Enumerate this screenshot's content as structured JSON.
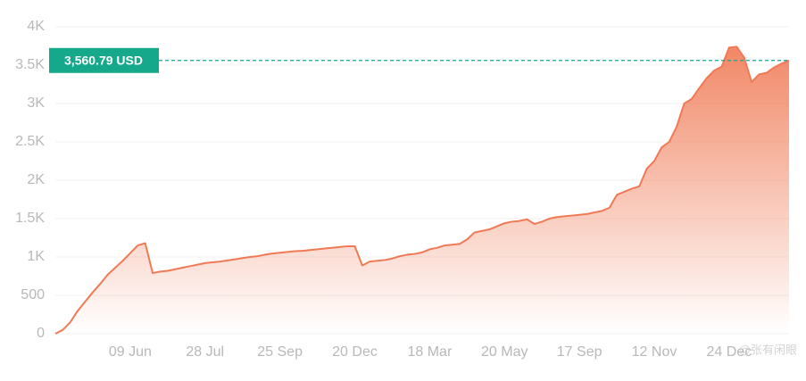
{
  "chart_data": {
    "type": "area",
    "categories": [
      null,
      null,
      null,
      null,
      null,
      null,
      null,
      null,
      null,
      null,
      "09 Jun",
      null,
      null,
      null,
      null,
      null,
      null,
      null,
      null,
      null,
      "28 Jul",
      null,
      null,
      null,
      null,
      null,
      null,
      null,
      null,
      null,
      "25 Sep",
      null,
      null,
      null,
      null,
      null,
      null,
      null,
      null,
      null,
      "20 Dec",
      null,
      null,
      null,
      null,
      null,
      null,
      null,
      null,
      null,
      "18 Mar",
      null,
      null,
      null,
      null,
      null,
      null,
      null,
      null,
      null,
      "20 May",
      null,
      null,
      null,
      null,
      null,
      null,
      null,
      null,
      null,
      "17 Sep",
      null,
      null,
      null,
      null,
      null,
      null,
      null,
      null,
      null,
      "12 Nov",
      null,
      null,
      null,
      null,
      null,
      null,
      null,
      null,
      null,
      "24 Dec",
      null,
      null,
      null,
      null,
      null,
      null,
      null,
      null
    ],
    "values": [
      0,
      50,
      150,
      300,
      420,
      540,
      650,
      770,
      860,
      950,
      1050,
      1150,
      1180,
      790,
      810,
      820,
      840,
      860,
      880,
      900,
      920,
      930,
      940,
      955,
      970,
      985,
      1000,
      1010,
      1030,
      1045,
      1055,
      1065,
      1075,
      1080,
      1090,
      1100,
      1110,
      1120,
      1130,
      1140,
      1140,
      890,
      940,
      950,
      960,
      980,
      1010,
      1030,
      1040,
      1060,
      1100,
      1120,
      1150,
      1160,
      1170,
      1230,
      1320,
      1340,
      1360,
      1400,
      1440,
      1460,
      1470,
      1490,
      1430,
      1460,
      1500,
      1520,
      1530,
      1540,
      1550,
      1560,
      1580,
      1600,
      1640,
      1810,
      1850,
      1890,
      1920,
      2150,
      2250,
      2430,
      2500,
      2700,
      3000,
      3060,
      3200,
      3330,
      3430,
      3480,
      3730,
      3740,
      3600,
      3280,
      3380,
      3400,
      3470,
      3520,
      3560.79
    ],
    "color": "#f07a55",
    "ylim": [
      0,
      4000
    ],
    "yticks": [
      0,
      500,
      {
        "value": 1000,
        "label": "1K"
      },
      {
        "value": 1500,
        "label": "1.5K"
      },
      {
        "value": 2000,
        "label": "2K"
      },
      {
        "value": 2500,
        "label": "2.5K"
      },
      {
        "value": 3000,
        "label": "3K"
      },
      {
        "value": 3500,
        "label": "3.5K"
      },
      {
        "value": 4000,
        "label": "4K"
      }
    ],
    "grid": true,
    "current_value": 3560.79,
    "current_label": "3,560.79 USD",
    "current_color": "#15a88a",
    "watermark": "@张有闲眼"
  }
}
